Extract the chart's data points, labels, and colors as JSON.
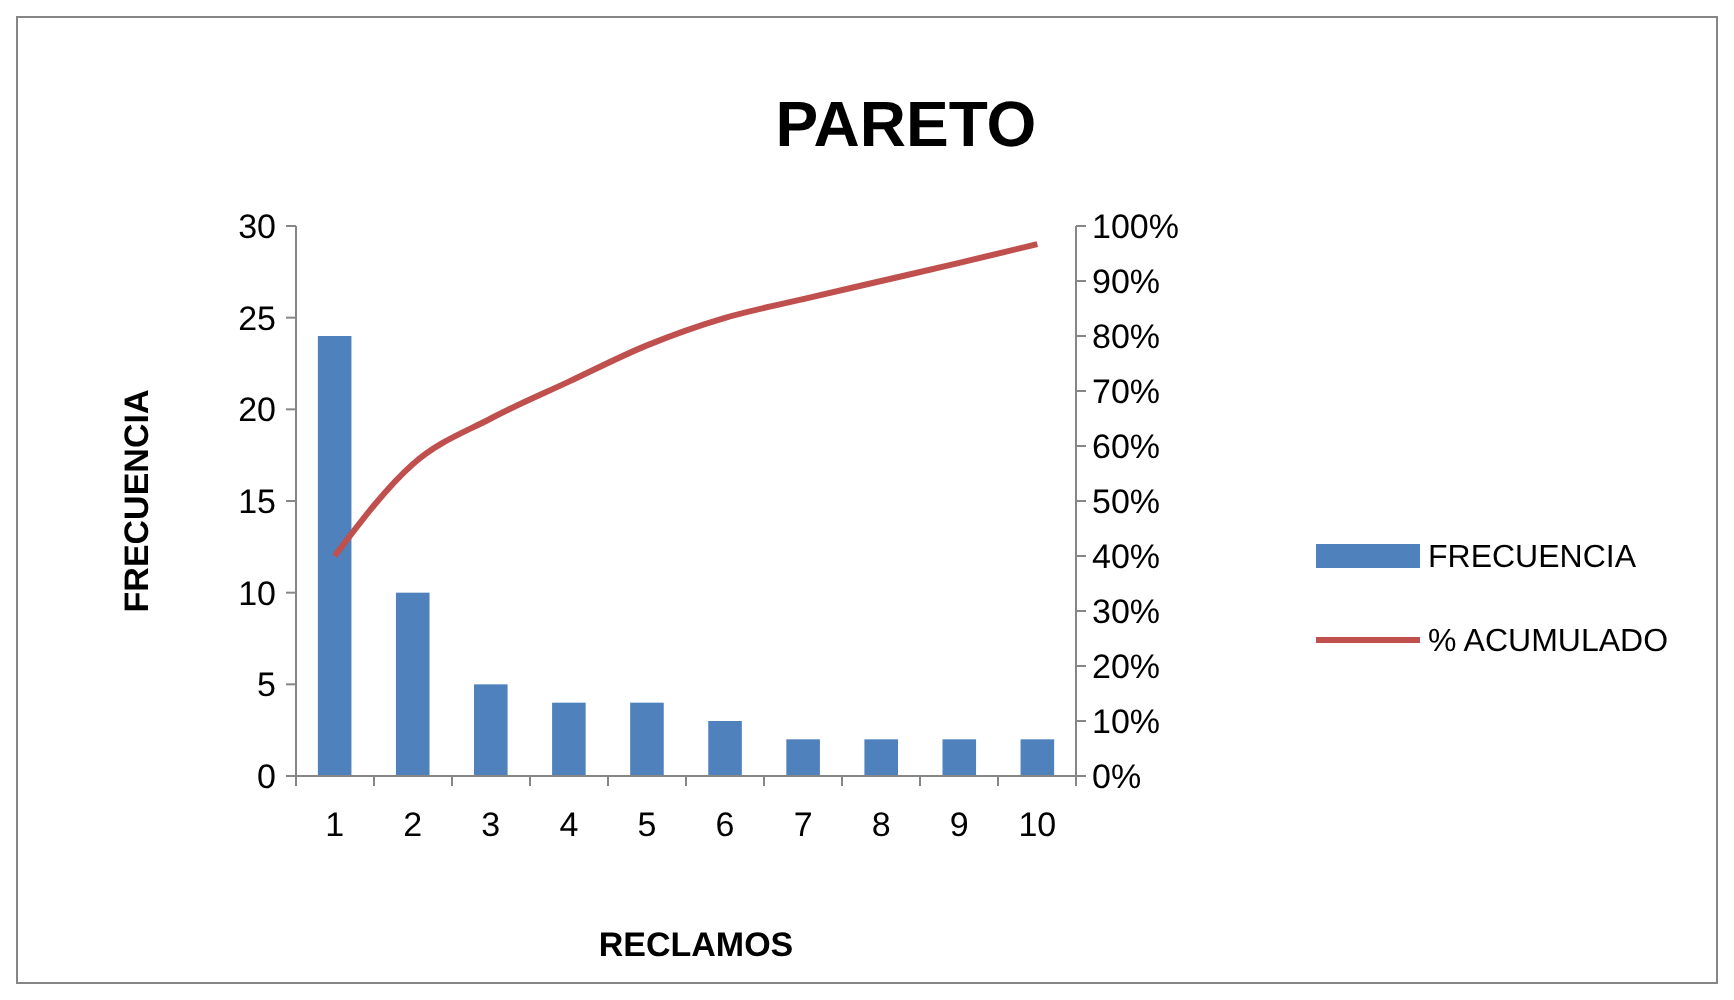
{
  "chart_data": {
    "type": "bar",
    "title": "PARETO",
    "xlabel": "RECLAMOS",
    "ylabel": "FRECUENCIA",
    "categories": [
      "1",
      "2",
      "3",
      "4",
      "5",
      "6",
      "7",
      "8",
      "9",
      "10"
    ],
    "series": [
      {
        "name": "FRECUENCIA",
        "color": "#4f81bd",
        "values": [
          24,
          10,
          5,
          4,
          4,
          3,
          2,
          2,
          2,
          2
        ]
      },
      {
        "name": "% ACUMULADO",
        "type": "line",
        "axis": "y2",
        "color": "#c0504d",
        "values": [
          40,
          56.7,
          65,
          71.7,
          78.3,
          83.3,
          86.7,
          90,
          93.3,
          96.7
        ]
      }
    ],
    "ylim": [
      0,
      30
    ],
    "yticks": [
      0,
      5,
      10,
      15,
      20,
      25,
      30
    ],
    "y2lim": [
      0,
      100
    ],
    "y2ticks": [
      {
        "value": 0,
        "label": "0%"
      },
      {
        "value": 10,
        "label": "10%"
      },
      {
        "value": 20,
        "label": "20%"
      },
      {
        "value": 30,
        "label": "30%"
      },
      {
        "value": 40,
        "label": "40%"
      },
      {
        "value": 50,
        "label": "50%"
      },
      {
        "value": 60,
        "label": "60%"
      },
      {
        "value": 70,
        "label": "70%"
      },
      {
        "value": 80,
        "label": "80%"
      },
      {
        "value": 90,
        "label": "90%"
      },
      {
        "value": 100,
        "label": "100%"
      }
    ],
    "grid": false,
    "legend": "right",
    "marker": "none",
    "line_style": "solid"
  }
}
